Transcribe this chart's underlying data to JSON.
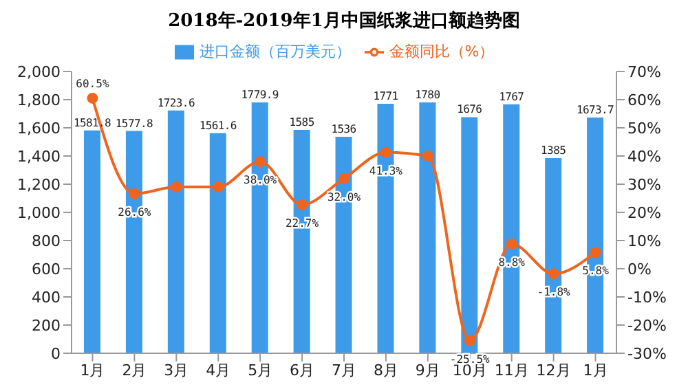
{
  "chart_data": {
    "type": "bar",
    "title": "2018年-2019年1月中国纸浆进口额趋势图",
    "categories": [
      "1月",
      "2月",
      "3月",
      "4月",
      "5月",
      "6月",
      "7月",
      "8月",
      "9月",
      "10月",
      "11月",
      "12月",
      "1月"
    ],
    "series": [
      {
        "name": "进口金额（百万美元）",
        "color": "#3d9be9",
        "values": [
          1581.8,
          1577.8,
          1723.6,
          1561.6,
          1779.9,
          1585,
          1536,
          1771,
          1780,
          1676,
          1767,
          1385,
          1673.7
        ],
        "value_labels": [
          "1581.8",
          "1577.8",
          "1723.6",
          "1561.6",
          "1779.9",
          "1585",
          "1536",
          "1771",
          "1780",
          "1676",
          "1767",
          "1385",
          "1673.7"
        ]
      },
      {
        "name": "金额同比（%）",
        "type": "line",
        "axis": "y2",
        "color": "#f0641e",
        "marker": "circle",
        "values": [
          60.5,
          26.6,
          29,
          29,
          38.0,
          22.7,
          32.0,
          41.3,
          40,
          -25.5,
          8.8,
          -1.8,
          5.8
        ],
        "value_labels": [
          "60.5%",
          "26.6%",
          null,
          null,
          "38.0%",
          "22.7%",
          "32.0%",
          "41.3%",
          null,
          "-25.5%",
          "8.8%",
          "-1.8%",
          "5.8%"
        ]
      }
    ],
    "ylim": [
      0,
      2000
    ],
    "yticks": [
      0,
      {
        "value": 200,
        "label": "200"
      },
      400,
      600,
      800,
      {
        "value": 1000,
        "label": "1,000"
      },
      {
        "value": 1200,
        "label": "1,200"
      },
      {
        "value": 1400,
        "label": "1,400"
      },
      {
        "value": 1600,
        "label": "1,600"
      },
      {
        "value": 1800,
        "label": "1,800"
      },
      {
        "value": 2000,
        "label": "2,000"
      }
    ],
    "y2lim": [
      -30,
      70
    ],
    "y2ticks": [
      {
        "value": -30,
        "label": "-30%"
      },
      {
        "value": -20,
        "label": "-20%"
      },
      {
        "value": -10,
        "label": "-10%"
      },
      {
        "value": 0,
        "label": "0%"
      },
      {
        "value": 10,
        "label": "10%"
      },
      {
        "value": 20,
        "label": "20%"
      },
      {
        "value": 30,
        "label": "30%"
      },
      {
        "value": 40,
        "label": "40%"
      },
      {
        "value": 50,
        "label": "50%"
      },
      {
        "value": 60,
        "label": "60%"
      },
      {
        "value": 70,
        "label": "70%"
      }
    ],
    "legend": "top",
    "grid": false
  }
}
